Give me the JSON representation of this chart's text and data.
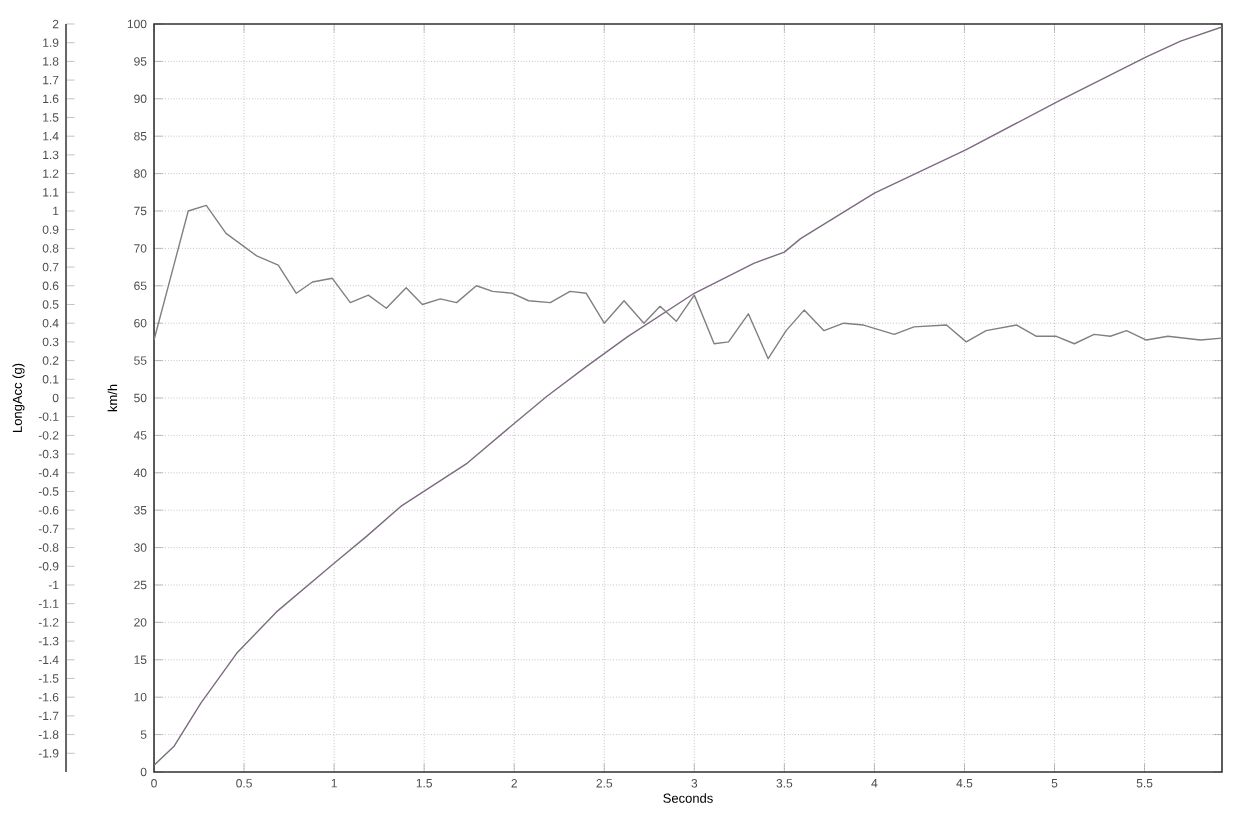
{
  "chart_data": {
    "type": "line",
    "xlabel": "Seconds",
    "ylabel": "LongAcc (g)",
    "y2label": "km/h",
    "grid": true,
    "xlim": [
      0,
      5.93
    ],
    "xticks": [
      0,
      0.5,
      1,
      1.5,
      2,
      2.5,
      3,
      3.5,
      4,
      4.5,
      5,
      5.5
    ],
    "ylim": [
      -2,
      2
    ],
    "yticks": [
      -1.9,
      -1.8,
      -1.7,
      -1.6,
      -1.5,
      -1.4,
      -1.3,
      -1.2,
      -1.1,
      -1,
      -0.9,
      -0.8,
      -0.7,
      -0.6,
      -0.5,
      -0.4,
      -0.3,
      -0.2,
      -0.1,
      0,
      0.1,
      0.2,
      0.3,
      0.4,
      0.5,
      0.6,
      0.7,
      0.8,
      0.9,
      1,
      1.1,
      1.2,
      1.3,
      1.4,
      1.5,
      1.6,
      1.7,
      1.8,
      1.9,
      2
    ],
    "y2lim": [
      0,
      100
    ],
    "y2ticks": [
      0,
      5,
      10,
      15,
      20,
      25,
      30,
      35,
      40,
      45,
      50,
      55,
      60,
      65,
      70,
      75,
      80,
      85,
      90,
      95,
      100
    ],
    "series": [
      {
        "color": "#808080",
        "x": [
          0,
          0.19,
          0.29,
          0.4,
          0.57,
          0.69,
          0.79,
          0.88,
          0.99,
          1.09,
          1.19,
          1.29,
          1.4,
          1.49,
          1.59,
          1.68,
          1.79,
          1.88,
          1.99,
          2.08,
          2.2,
          2.31,
          2.4,
          2.5,
          2.61,
          2.72,
          2.81,
          2.9,
          3.0,
          3.11,
          3.19,
          3.3,
          3.41,
          3.51,
          3.61,
          3.72,
          3.83,
          3.94,
          4.11,
          4.22,
          4.4,
          4.51,
          4.62,
          4.79,
          4.9,
          5.01,
          5.11,
          5.22,
          5.31,
          5.4,
          5.51,
          5.63,
          5.81,
          5.93
        ],
        "values": [
          0.31,
          1.0,
          1.03,
          0.88,
          0.76,
          0.71,
          0.56,
          0.62,
          0.64,
          0.51,
          0.55,
          0.48,
          0.59,
          0.5,
          0.53,
          0.51,
          0.6,
          0.57,
          0.56,
          0.52,
          0.51,
          0.57,
          0.56,
          0.4,
          0.52,
          0.4,
          0.49,
          0.41,
          0.55,
          0.29,
          0.3,
          0.45,
          0.21,
          0.36,
          0.47,
          0.36,
          0.4,
          0.39,
          0.34,
          0.38,
          0.39,
          0.3,
          0.36,
          0.39,
          0.33,
          0.33,
          0.29,
          0.34,
          0.33,
          0.36,
          0.31,
          0.33,
          0.31,
          0.32
        ]
      },
      {
        "color": "#7d6b80",
        "axis": "y2",
        "x": [
          0,
          0.11,
          0.26,
          0.46,
          0.68,
          1.0,
          1.18,
          1.37,
          1.74,
          2.0,
          2.18,
          2.4,
          2.63,
          3.0,
          3.33,
          3.5,
          3.59,
          4.0,
          4.51,
          5.03,
          5.51,
          5.7,
          5.93
        ],
        "values": [
          0.9,
          3.4,
          9.2,
          15.9,
          21.4,
          27.9,
          31.5,
          35.5,
          41.3,
          46.6,
          50.2,
          54.2,
          58.2,
          64.0,
          68.0,
          69.5,
          71.3,
          77.4,
          83.2,
          89.8,
          95.6,
          97.7,
          99.6
        ]
      }
    ]
  }
}
